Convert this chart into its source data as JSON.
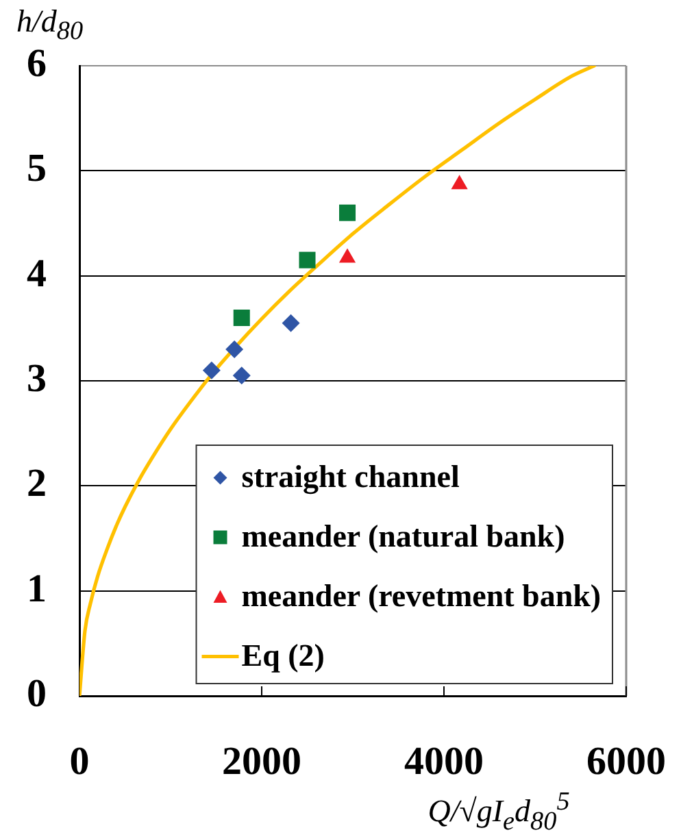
{
  "chart_data": {
    "type": "scatter",
    "xlabel": "Q/√gI$_{e}$d$_{80}$$^{5}$",
    "ylabel": "h/d$_{80}$",
    "xlim": [
      0,
      6000
    ],
    "ylim": [
      0,
      6
    ],
    "xticks": [
      0,
      2000,
      4000,
      6000
    ],
    "yticks": [
      0,
      1,
      2,
      3,
      4,
      5,
      6
    ],
    "grid": "y",
    "legend": "bottom right",
    "series": [
      {
        "name": "straight channel",
        "type": "scatter",
        "color": "#2f55a5",
        "marker": "diamond",
        "x": [
          1450,
          1700,
          1780,
          2320
        ],
        "values": [
          3.1,
          3.3,
          3.05,
          3.55
        ]
      },
      {
        "name": "meander (natural bank)",
        "type": "scatter",
        "color": "#0a7d3b",
        "marker": "square",
        "x": [
          1780,
          2500,
          2940
        ],
        "values": [
          3.6,
          4.15,
          4.6
        ]
      },
      {
        "name": "meander (revetment bank)",
        "type": "scatter",
        "color": "#ed1c24",
        "marker": "triangle",
        "x": [
          2940,
          4170
        ],
        "values": [
          4.17,
          4.87
        ]
      },
      {
        "name": "Eq (2)",
        "type": "line",
        "color": "#ffc000",
        "marker": "none",
        "line_style": "solid",
        "x": [
          0,
          60,
          120,
          200,
          300,
          400,
          500,
          650,
          800,
          1000,
          1200,
          1450,
          1700,
          2000,
          2300,
          2600,
          3000,
          3400,
          3800,
          4200,
          4600,
          5000,
          5400,
          5650
        ],
        "values": [
          0,
          0.62,
          0.88,
          1.14,
          1.39,
          1.61,
          1.8,
          2.05,
          2.27,
          2.54,
          2.78,
          3.06,
          3.31,
          3.59,
          3.85,
          4.09,
          4.4,
          4.68,
          4.95,
          5.2,
          5.45,
          5.68,
          5.9,
          6.0
        ]
      }
    ]
  }
}
